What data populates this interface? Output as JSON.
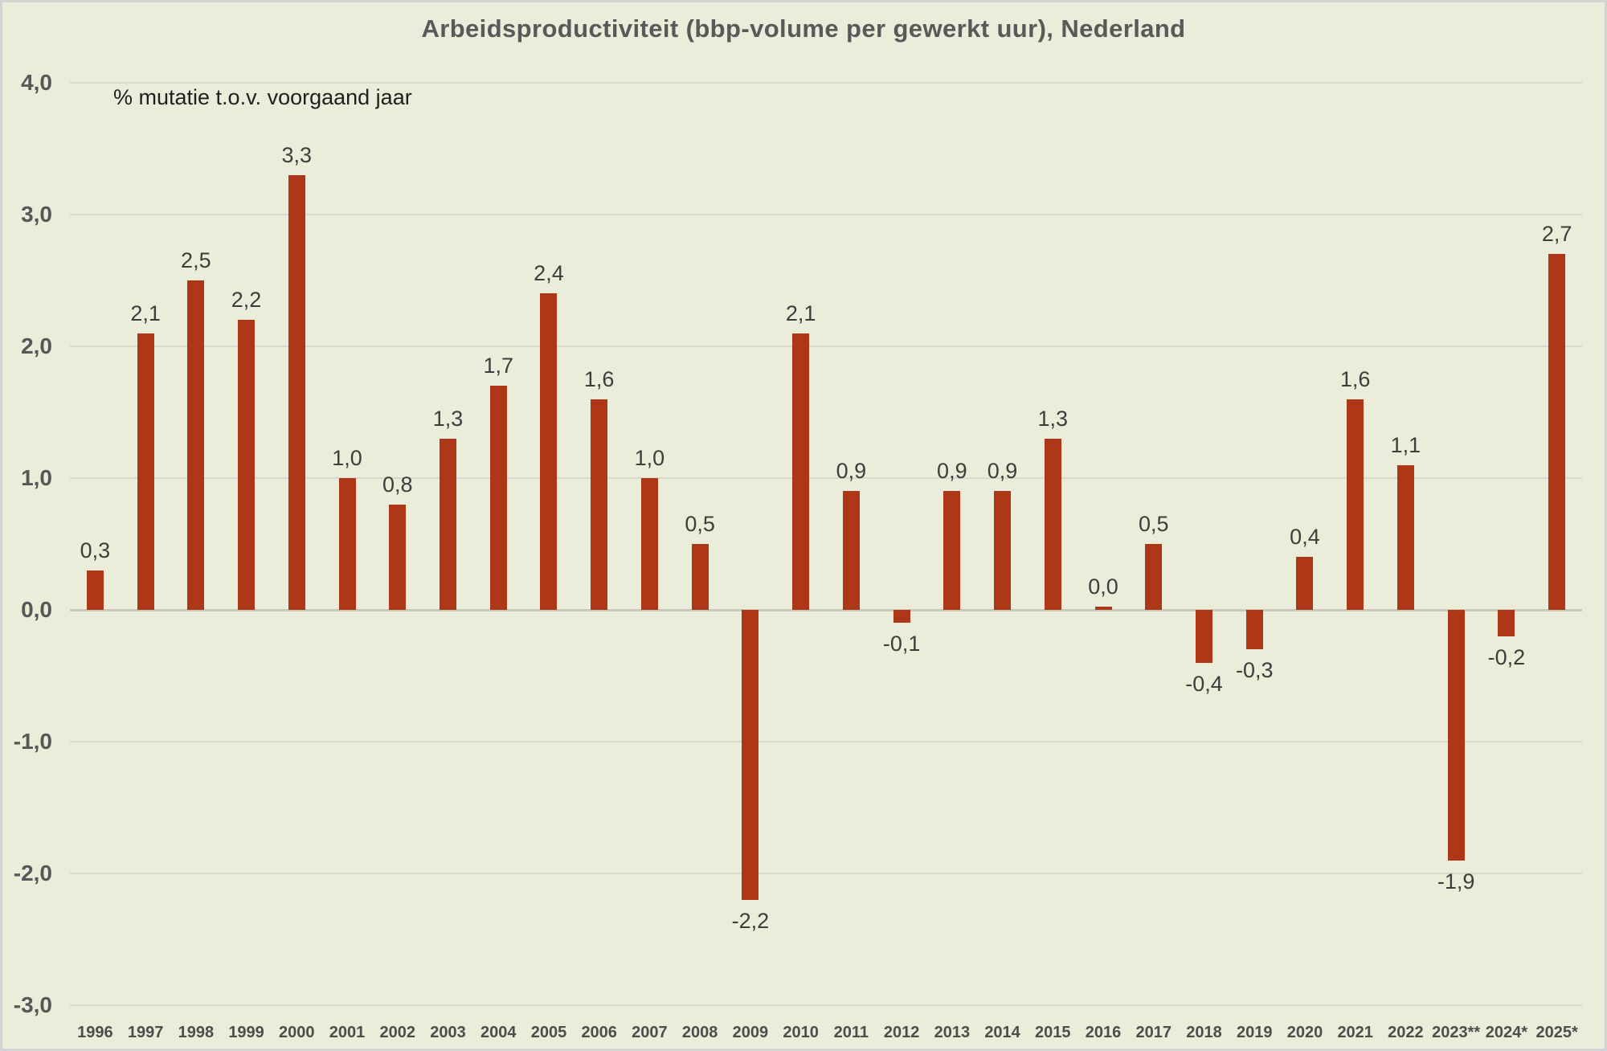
{
  "title": "Arbeidsproductiviteit (bbp-volume per gewerkt uur), Nederland",
  "subtitle": "% mutatie t.o.v. voorgaand jaar",
  "colors": {
    "background": "#e9edda",
    "bar": "#ad3716",
    "gridline": "#d7dacb",
    "zero_line": "#c8cbbc",
    "title_text": "#595959",
    "axis_text": "#575757",
    "value_text": "#3d3d3d",
    "frame_border": "#d4d4d4"
  },
  "chart_data": {
    "type": "bar",
    "title": "Arbeidsproductiviteit (bbp-volume per gewerkt uur), Nederland",
    "subtitle": "% mutatie t.o.v. voorgaand jaar",
    "categories": [
      "1996",
      "1997",
      "1998",
      "1999",
      "2000",
      "2001",
      "2002",
      "2003",
      "2004",
      "2005",
      "2006",
      "2007",
      "2008",
      "2009",
      "2010",
      "2011",
      "2012",
      "2013",
      "2014",
      "2015",
      "2016",
      "2017",
      "2018",
      "2019",
      "2020",
      "2021",
      "2022",
      "2023**",
      "2024*",
      "2025*"
    ],
    "values": [
      0.3,
      2.1,
      2.5,
      2.2,
      3.3,
      1.0,
      0.8,
      1.3,
      1.7,
      2.4,
      1.6,
      1.0,
      0.5,
      -2.2,
      2.1,
      0.9,
      -0.1,
      0.9,
      0.9,
      1.3,
      0.0,
      0.5,
      -0.4,
      -0.3,
      0.4,
      1.6,
      1.1,
      -1.9,
      -0.2,
      2.7
    ],
    "value_labels": [
      "0,3",
      "2,1",
      "2,5",
      "2,2",
      "3,3",
      "1,0",
      "0,8",
      "1,3",
      "1,7",
      "2,4",
      "1,6",
      "1,0",
      "0,5",
      "-2,2",
      "2,1",
      "0,9",
      "-0,1",
      "0,9",
      "0,9",
      "1,3",
      "0,0",
      "0,5",
      "-0,4",
      "-0,3",
      "0,4",
      "1,6",
      "1,1",
      "-1,9",
      "-0,2",
      "2,7"
    ],
    "xlabel": "",
    "ylabel": "% mutatie t.o.v. voorgaand jaar",
    "ylim": [
      -3.0,
      4.0
    ],
    "yticks": [
      4.0,
      3.0,
      2.0,
      1.0,
      0.0,
      -1.0,
      -2.0,
      -3.0
    ],
    "ytick_labels": [
      "4,0",
      "3,0",
      "2,0",
      "1,0",
      "0,0",
      "-1,0",
      "-2,0",
      "-3,0"
    ],
    "grid": true,
    "legend": "none",
    "bar_color": "#ad3716"
  }
}
